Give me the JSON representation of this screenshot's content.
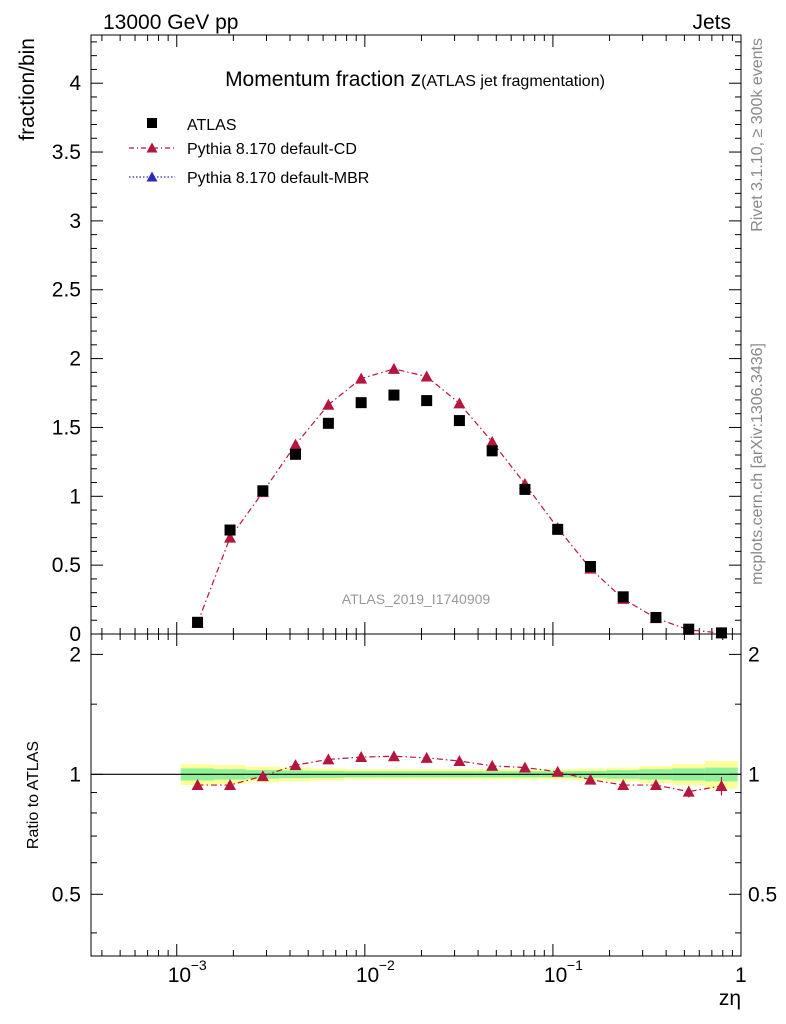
{
  "header": {
    "left": "13000 GeV pp",
    "right": "Jets"
  },
  "side_labels": {
    "rivet": "Rivet 3.1.10, ≥ 300k events",
    "mcplots": "mcplots.cern.ch [arXiv:1306.3436]"
  },
  "watermark": "ATLAS_2019_I1740909",
  "colors": {
    "data": "#000000",
    "cd": "#b5163f",
    "mbr": "#2b2bb5",
    "band_outer": "#ffff99",
    "band_inner": "#8ff29a"
  },
  "chart_data": [
    {
      "type": "scatter",
      "title": "Momentum fraction z",
      "title_sub": "(ATLAS jet fragmentation)",
      "ylabel": "fraction/bin",
      "xscale": "log",
      "xlim": [
        0.00035,
        1.0
      ],
      "ylim": [
        0,
        4.35
      ],
      "y_ticks": [
        0,
        0.5,
        1,
        1.5,
        2,
        2.5,
        3,
        3.5,
        4
      ],
      "y_tick_labels": [
        "0",
        "0.5",
        "1",
        "1.5",
        "2",
        "2.5",
        "3",
        "3.5",
        "4"
      ],
      "legend_position": "top-left",
      "legend": [
        "ATLAS",
        "Pythia 8.170 default-CD",
        "Pythia 8.170 default-MBR"
      ],
      "x": [
        0.00129,
        0.00192,
        0.00287,
        0.00428,
        0.0064,
        0.00956,
        0.01428,
        0.02132,
        0.03183,
        0.04754,
        0.071,
        0.10602,
        0.15832,
        0.23642,
        0.35305,
        0.52722,
        0.78731
      ],
      "series": [
        {
          "name": "ATLAS",
          "values": [
            0.085,
            0.755,
            1.04,
            1.305,
            1.53,
            1.68,
            1.735,
            1.695,
            1.55,
            1.33,
            1.05,
            0.76,
            0.49,
            0.27,
            0.12,
            0.035,
            0.008
          ]
        },
        {
          "name": "Pythia 8.170 default-CD",
          "values": [
            0.08,
            0.7,
            1.03,
            1.375,
            1.665,
            1.855,
            1.925,
            1.87,
            1.675,
            1.395,
            1.09,
            0.77,
            0.475,
            0.255,
            0.115,
            0.03,
            0.007
          ]
        }
      ]
    },
    {
      "type": "scatter",
      "ylabel": "Ratio to ATLAS",
      "xlabel": "zη",
      "xscale": "log",
      "xlim": [
        0.00035,
        1.0
      ],
      "ylim": [
        0.35,
        2.25
      ],
      "y_ticks": [
        0.5,
        1,
        2
      ],
      "y_tick_labels": [
        "0.5",
        "1",
        "2"
      ],
      "x_ticks": [
        0.001,
        0.01,
        0.1,
        1
      ],
      "x_tick_labels": [
        "10",
        "10",
        "10",
        "1"
      ],
      "x_tick_exponents": [
        "−3",
        "−2",
        "−1",
        ""
      ],
      "x": [
        0.00129,
        0.00192,
        0.00287,
        0.00428,
        0.0064,
        0.00956,
        0.01428,
        0.02132,
        0.03183,
        0.04754,
        0.071,
        0.10602,
        0.15832,
        0.23642,
        0.35305,
        0.52722,
        0.78731
      ],
      "band_edges": [
        0.00105,
        0.00157,
        0.00234,
        0.0035,
        0.00523,
        0.00781,
        0.01166,
        0.01741,
        0.026,
        0.03882,
        0.05797,
        0.08656,
        0.12925,
        0.193,
        0.28819,
        0.43033,
        0.64257,
        0.96
      ],
      "band_outer": [
        0.06,
        0.055,
        0.045,
        0.04,
        0.035,
        0.03,
        0.03,
        0.03,
        0.03,
        0.03,
        0.03,
        0.03,
        0.035,
        0.04,
        0.05,
        0.06,
        0.08
      ],
      "band_inner": [
        0.035,
        0.03,
        0.025,
        0.022,
        0.02,
        0.018,
        0.018,
        0.018,
        0.018,
        0.018,
        0.018,
        0.018,
        0.02,
        0.025,
        0.03,
        0.035,
        0.04
      ],
      "series": [
        {
          "name": "Pythia 8.170 default-CD",
          "values": [
            0.94,
            0.94,
            0.99,
            1.055,
            1.09,
            1.105,
            1.11,
            1.1,
            1.08,
            1.05,
            1.04,
            1.015,
            0.97,
            0.94,
            0.94,
            0.905,
            0.935
          ],
          "errors": [
            0.01,
            0.01,
            0.01,
            0.01,
            0.01,
            0.01,
            0.01,
            0.01,
            0.01,
            0.01,
            0.01,
            0.01,
            0.01,
            0.01,
            0.015,
            0.03,
            0.05
          ]
        }
      ]
    }
  ]
}
